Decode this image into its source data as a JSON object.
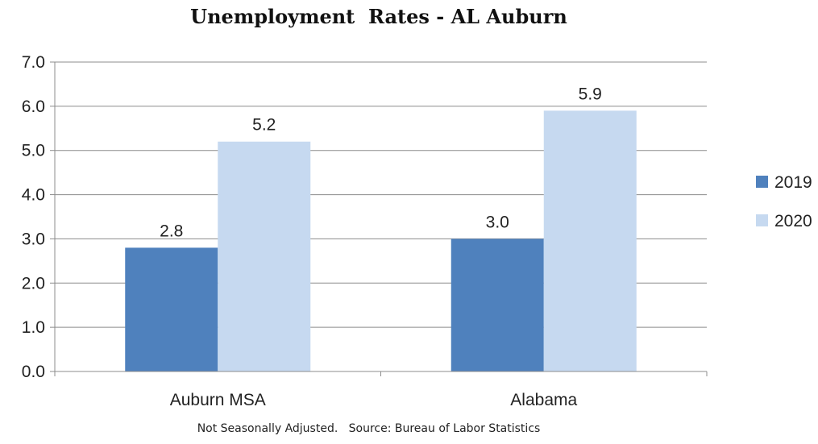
{
  "chart_data": {
    "type": "bar",
    "title": "Unemployment  Rates - AL Auburn",
    "categories": [
      "Auburn MSA",
      "Alabama"
    ],
    "series": [
      {
        "name": "2019",
        "values": [
          2.8,
          3.0
        ],
        "color": "#4f81bd"
      },
      {
        "name": "2020",
        "values": [
          5.2,
          5.9
        ],
        "color": "#c6d9f0"
      }
    ],
    "data_labels": [
      [
        "2.8",
        "3.0"
      ],
      [
        "5.2",
        "5.9"
      ]
    ],
    "y_ticks": [
      "0.0",
      "1.0",
      "2.0",
      "3.0",
      "4.0",
      "5.0",
      "6.0",
      "7.0"
    ],
    "ylim": [
      0,
      7
    ],
    "grid": true,
    "legend_position": "right",
    "footnote": "Not Seasonally Adjusted.   Source: Bureau of Labor Statistics"
  }
}
